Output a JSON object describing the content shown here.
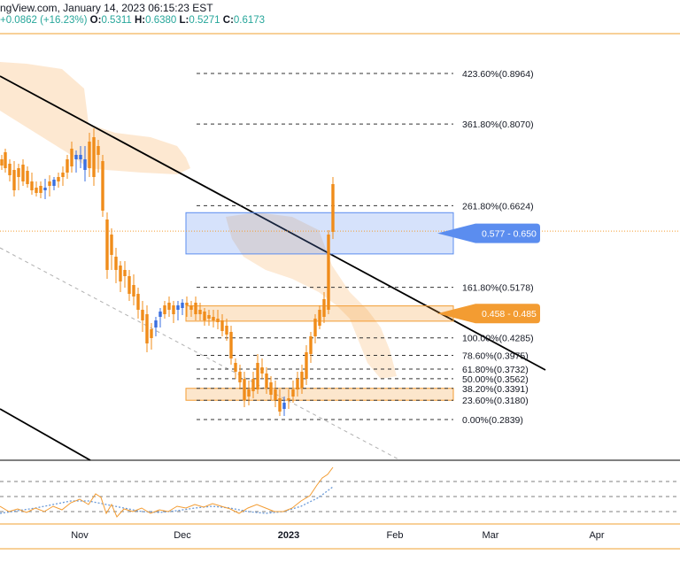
{
  "header": {
    "source_date": "ngView.com, January 14, 2023 06:15:23 EST",
    "change": "+0.0862 (+16.23%)",
    "o_label": "O:",
    "o": "0.5311",
    "h_label": "H:",
    "h": "0.6380",
    "l_label": "L:",
    "l": "0.5271",
    "c_label": "C:",
    "c": "0.6173"
  },
  "chart_data": {
    "type": "candlestick",
    "xlabel": "",
    "ylabel": "",
    "x_ticks": [
      "Nov",
      "Dec",
      "2023",
      "Feb",
      "Mar",
      "Apr"
    ],
    "fib_levels": [
      {
        "label": "423.60%(0.8964)",
        "value": 0.8964
      },
      {
        "label": "361.80%(0.8070)",
        "value": 0.807
      },
      {
        "label": "261.80%(0.6624)",
        "value": 0.6624
      },
      {
        "label": "161.80%(0.5178)",
        "value": 0.5178
      },
      {
        "label": "100.00%(0.4285)",
        "value": 0.4285
      },
      {
        "label": "78.60%(0.3975)",
        "value": 0.3975
      },
      {
        "label": "61.80%(0.3732)",
        "value": 0.3732
      },
      {
        "label": "50.00%(0.3562)",
        "value": 0.3562
      },
      {
        "label": "38.20%(0.3391)",
        "value": 0.3391
      },
      {
        "label": "23.60%(0.3180)",
        "value": 0.318
      },
      {
        "label": "0.00%(0.2839)",
        "value": 0.2839
      }
    ],
    "zones": [
      {
        "label": "0.577 - 0.650",
        "low": 0.577,
        "high": 0.65,
        "color": "#5b8def"
      },
      {
        "label": "0.458 - 0.485",
        "low": 0.458,
        "high": 0.485,
        "color": "#f39c32"
      },
      {
        "low": 0.318,
        "high": 0.3391,
        "color": "#f39c32"
      }
    ],
    "last_price": 0.6173,
    "colors": {
      "up": "#3a6fe0",
      "down": "#f08c1a",
      "cloud": "#fbd9b2",
      "oscillator": "#f39c32",
      "signal": "#6a9ad8"
    }
  }
}
